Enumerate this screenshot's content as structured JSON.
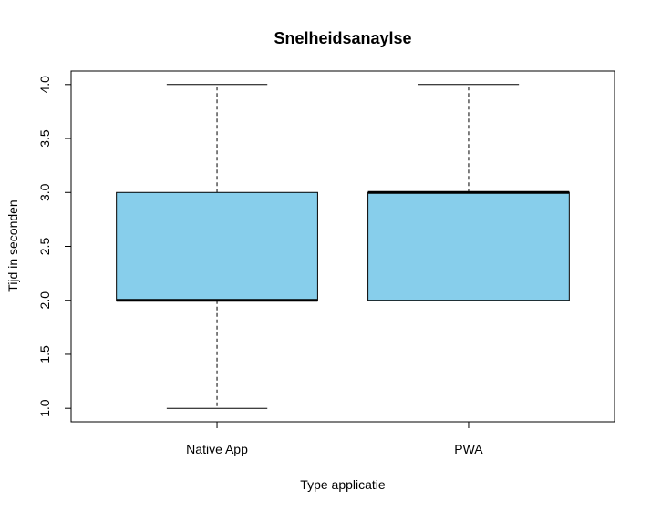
{
  "chart_data": {
    "type": "boxplot",
    "title": "Snelheidsanaylse",
    "xlabel": "Type applicatie",
    "ylabel": "Tijd in seconden",
    "ylim": [
      0.875,
      4.125
    ],
    "yticks": [
      "1.0",
      "1.5",
      "2.0",
      "2.5",
      "3.0",
      "3.5",
      "4.0"
    ],
    "fill_color": "#87ceeb",
    "grid": false,
    "categories": [
      "Native App",
      "PWA"
    ],
    "boxes": [
      {
        "category": "Native App",
        "min": 1.0,
        "q1": 2.0,
        "median": 2.0,
        "q3": 3.0,
        "max": 4.0
      },
      {
        "category": "PWA",
        "min": 2.0,
        "q1": 2.0,
        "median": 3.0,
        "q3": 3.0,
        "max": 4.0
      }
    ]
  }
}
